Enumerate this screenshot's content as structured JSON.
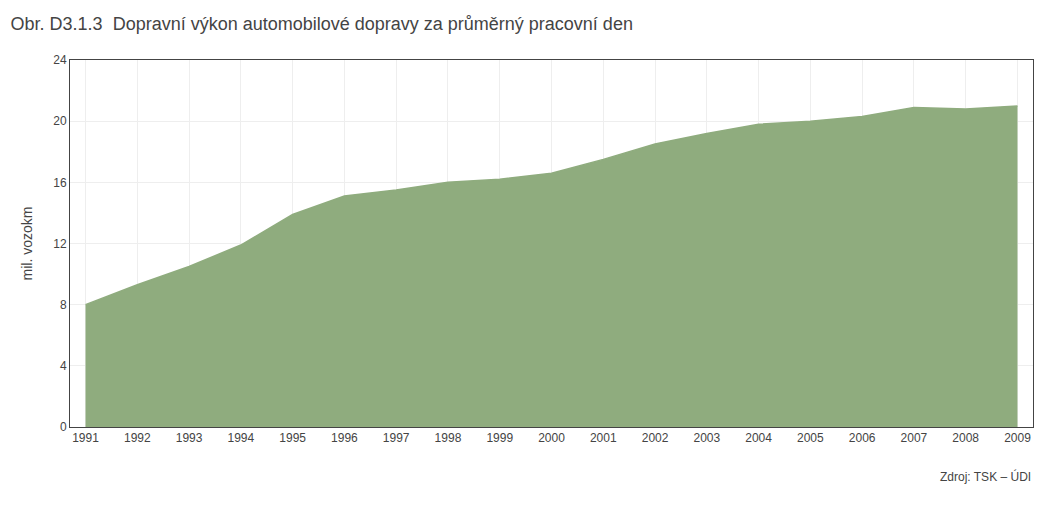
{
  "chart_data": {
    "type": "area",
    "title": "Obr. D3.1.3  Dopravní výkon automobilové dopravy za průměrný pracovní den",
    "ylabel": "mil. vozokm",
    "annotations": [
      "Zdroj: TSK – ÚDI"
    ],
    "x": [
      1991,
      1992,
      1993,
      1994,
      1995,
      1996,
      1997,
      1998,
      1999,
      2000,
      2001,
      2002,
      2003,
      2004,
      2005,
      2006,
      2007,
      2008,
      2009
    ],
    "values": [
      8.0,
      9.3,
      10.5,
      11.9,
      13.9,
      15.1,
      15.5,
      16.0,
      16.2,
      16.6,
      17.5,
      18.5,
      19.2,
      19.8,
      20.0,
      20.3,
      20.9,
      20.8,
      21.0
    ],
    "color": "#8fac7e",
    "xlim": [
      1990.7,
      2009.3
    ],
    "xticks": [
      1991,
      1992,
      1993,
      1994,
      1995,
      1996,
      1997,
      1998,
      1999,
      2000,
      2001,
      2002,
      2003,
      2004,
      2005,
      2006,
      2007,
      2008,
      2009
    ],
    "ylim": [
      0,
      24
    ],
    "yticks": [
      0,
      4,
      8,
      12,
      16,
      20,
      24
    ],
    "grid": true
  }
}
